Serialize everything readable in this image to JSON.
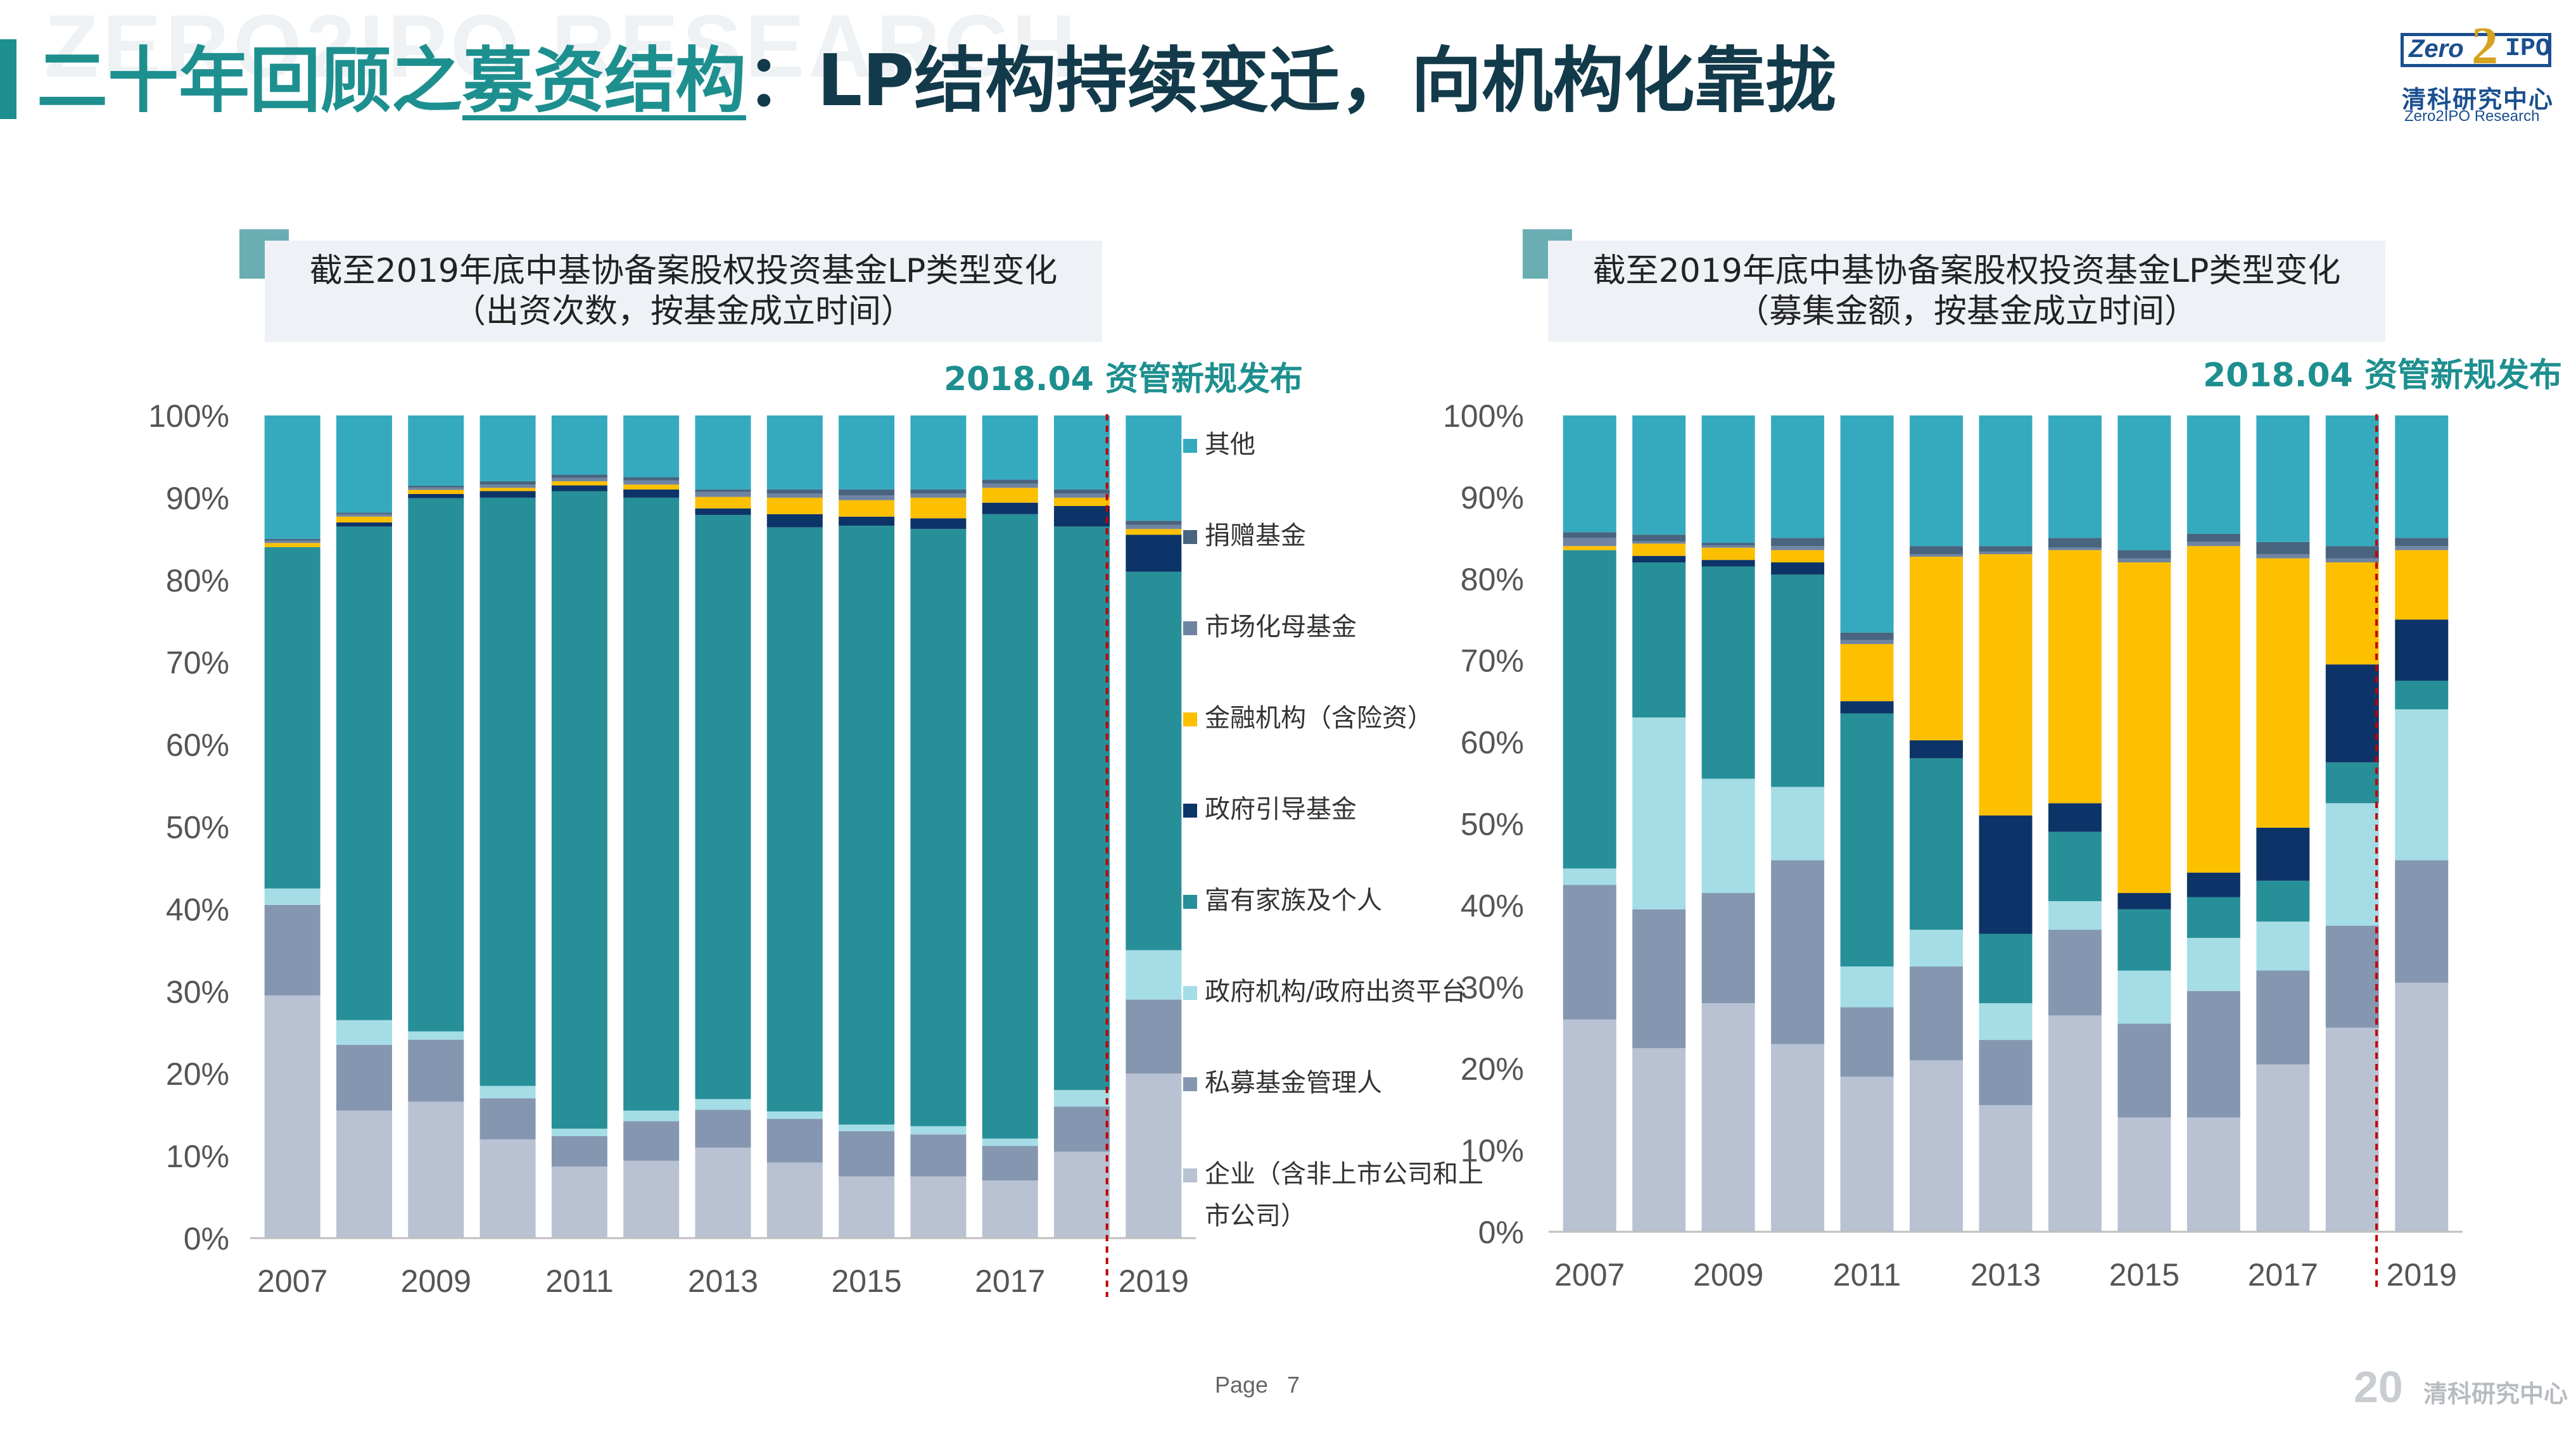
{
  "header": {
    "watermark": "ZERO2IPO RESEARCH",
    "title_part1": "二十年回顾之",
    "title_part2": "募资结构",
    "title_part3": "：LP结构持续变迁，向机构化靠拢"
  },
  "logo": {
    "zero": "Zero",
    "two": "2",
    "ipo": "IPO",
    "cn": "清科研究中心",
    "en": "Zero2IPO Research"
  },
  "colors": {
    "其他": "#35aabf",
    "捐赠基金": "#48647e",
    "市场化母基金": "#6f84a2",
    "金融机构（含险资）": "#fcc000",
    "政府引导基金": "#0d3468",
    "富有家族及个人": "#278f98",
    "政府机构/政府出资平台": "#a5dde6",
    "私募基金管理人": "#8596b0",
    "企业（含非上市公司和上市公司）": "#b8c2d2",
    "policy_line": "#c00000",
    "accent": "#1e8f8f"
  },
  "legend": [
    {
      "key": "其他",
      "lines": [
        "其他"
      ]
    },
    {
      "key": "捐赠基金",
      "lines": [
        "捐赠基金"
      ]
    },
    {
      "key": "市场化母基金",
      "lines": [
        "市场化母基金"
      ]
    },
    {
      "key": "金融机构（含险资）",
      "lines": [
        "金融机构（含险资）"
      ]
    },
    {
      "key": "政府引导基金",
      "lines": [
        "政府引导基金"
      ]
    },
    {
      "key": "富有家族及个人",
      "lines": [
        "富有家族及个人"
      ]
    },
    {
      "key": "政府机构/政府出资平台",
      "lines": [
        "政府机构/政府出资平台"
      ]
    },
    {
      "key": "私募基金管理人",
      "lines": [
        "私募基金管理人"
      ]
    },
    {
      "key": "企业（含非上市公司和上市公司）",
      "lines": [
        "企业（含非上市公司和上",
        "市公司）"
      ]
    }
  ],
  "chart_data": [
    {
      "type": "bar",
      "stacked": true,
      "title_line1": "截至2019年底中基协备案股权投资基金LP类型变化",
      "title_line2": "（出资次数，按基金成立时间）",
      "annotation": "2018.04 资管新规发布",
      "categories": [
        "2007",
        "2008",
        "2009",
        "2010",
        "2011",
        "2012",
        "2013",
        "2014",
        "2015",
        "2016",
        "2017",
        "2018",
        "2019"
      ],
      "tick_labels": [
        "2007",
        "2009",
        "2011",
        "2013",
        "2015",
        "2017",
        "2019"
      ],
      "ylim": [
        0,
        100
      ],
      "yticks": [
        "0%",
        "10%",
        "20%",
        "30%",
        "40%",
        "50%",
        "60%",
        "70%",
        "80%",
        "90%",
        "100%"
      ],
      "series": [
        {
          "name": "企业（含非上市公司和上市公司）",
          "values": [
            29.5,
            15.5,
            16.5,
            12,
            8.7,
            9.4,
            11,
            9.2,
            7.5,
            7.5,
            7,
            10.5,
            20
          ]
        },
        {
          "name": "私募基金管理人",
          "values": [
            11,
            8,
            7.5,
            5,
            3.7,
            4.8,
            4.6,
            5.3,
            5.5,
            5.1,
            4.2,
            5.5,
            9
          ]
        },
        {
          "name": "政府机构/政府出资平台",
          "values": [
            2,
            3,
            1,
            1.5,
            0.9,
            1.3,
            1.3,
            0.9,
            0.8,
            1,
            0.9,
            2,
            6
          ]
        },
        {
          "name": "富有家族及个人",
          "values": [
            41.5,
            60,
            64.5,
            71.5,
            77.5,
            74.5,
            71,
            71,
            72.8,
            72.6,
            75.9,
            68.5,
            46
          ]
        },
        {
          "name": "政府引导基金",
          "values": [
            0,
            0.5,
            0.5,
            0.8,
            0.7,
            1,
            0.8,
            1.6,
            1.1,
            1.3,
            1.4,
            2.5,
            4.5
          ]
        },
        {
          "name": "金融机构（含险资）",
          "values": [
            0.5,
            0.7,
            0.5,
            0.4,
            0.5,
            0.6,
            1.4,
            2,
            2,
            2.5,
            1.8,
            1,
            0.7
          ]
        },
        {
          "name": "市场化母基金",
          "values": [
            0.3,
            0.3,
            0.3,
            0.4,
            0.4,
            0.5,
            0.6,
            0.5,
            0.6,
            0.5,
            0.5,
            0.5,
            0.5
          ]
        },
        {
          "name": "捐赠基金",
          "values": [
            0.2,
            0.2,
            0.2,
            0.4,
            0.4,
            0.4,
            0.3,
            0.5,
            0.7,
            0.5,
            0.5,
            0.5,
            0.5
          ]
        },
        {
          "name": "其他",
          "values": [
            15,
            11.8,
            8.5,
            8,
            7.2,
            7.5,
            9,
            9,
            9,
            9,
            7.8,
            9,
            12.8
          ]
        }
      ]
    },
    {
      "type": "bar",
      "stacked": true,
      "title_line1": "截至2019年底中基协备案股权投资基金LP类型变化",
      "title_line2": "（募集金额，按基金成立时间）",
      "annotation": "2018.04 资管新规发布",
      "categories": [
        "2007",
        "2008",
        "2009",
        "2010",
        "2011",
        "2012",
        "2013",
        "2014",
        "2015",
        "2016",
        "2017",
        "2018",
        "2019"
      ],
      "tick_labels": [
        "2007",
        "2009",
        "2011",
        "2013",
        "2015",
        "2017",
        "2019"
      ],
      "ylim": [
        0,
        100
      ],
      "yticks": [
        "0%",
        "10%",
        "20%",
        "30%",
        "40%",
        "50%",
        "60%",
        "70%",
        "80%",
        "90%",
        "100%"
      ],
      "series": [
        {
          "name": "企业（含非上市公司和上市公司）",
          "values": [
            26,
            22.5,
            28,
            23,
            19,
            21,
            15.5,
            26.5,
            14,
            14,
            20.5,
            25,
            30.5
          ]
        },
        {
          "name": "私募基金管理人",
          "values": [
            16.5,
            17,
            13.5,
            22.5,
            8.5,
            11.5,
            8,
            10.5,
            11.5,
            15.5,
            11.5,
            12.5,
            15
          ]
        },
        {
          "name": "政府机构/政府出资平台",
          "values": [
            2,
            23.5,
            14,
            9,
            5,
            4.5,
            4.5,
            3.5,
            6.5,
            6.5,
            6,
            15,
            18.5
          ]
        },
        {
          "name": "富有家族及个人",
          "values": [
            39,
            19,
            26,
            26,
            31,
            21,
            8.5,
            8.5,
            7.5,
            5,
            5,
            5,
            3.5
          ]
        },
        {
          "name": "政府引导基金",
          "values": [
            0,
            0.8,
            0.8,
            1.5,
            1.5,
            2.2,
            14.5,
            3.5,
            2,
            3,
            6.5,
            12,
            7.5
          ]
        },
        {
          "name": "金融机构（含险资）",
          "values": [
            0.5,
            1.5,
            1.5,
            1.5,
            7,
            22.5,
            32,
            31,
            40.5,
            40,
            33,
            12.5,
            8.5
          ]
        },
        {
          "name": "市场化母基金",
          "values": [
            1,
            0.3,
            0.3,
            0.5,
            0.5,
            0.3,
            0.3,
            0.3,
            0.5,
            0.5,
            0.5,
            0.5,
            0.5
          ]
        },
        {
          "name": "捐赠基金",
          "values": [
            0.7,
            0.8,
            0.3,
            1,
            0.9,
            1,
            0.7,
            1.2,
            1,
            1,
            1.5,
            1.5,
            1
          ]
        },
        {
          "name": "其他",
          "values": [
            14.3,
            14.6,
            15.6,
            15,
            26.6,
            16,
            16,
            15,
            16.5,
            14.5,
            15.5,
            16,
            15
          ]
        }
      ]
    }
  ],
  "footer": {
    "page_label": "Page",
    "page_number": "7",
    "brand_20": "20",
    "brand_text": "清科研究中心"
  }
}
